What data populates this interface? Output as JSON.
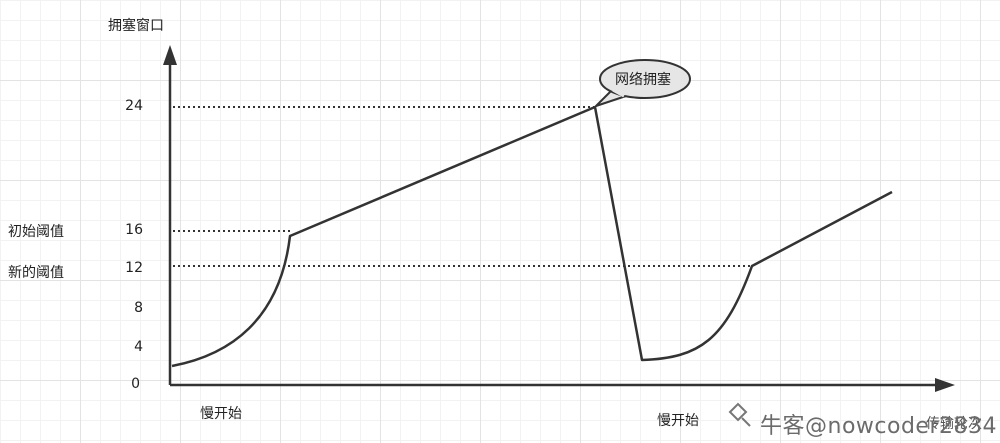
{
  "y_axis": {
    "label": "拥塞窗口"
  },
  "x_axis": {
    "label": "传输轮次"
  },
  "ticks": [
    "24",
    "16",
    "12",
    "8",
    "4",
    "0"
  ],
  "thresholds": {
    "initial": "初始阈值",
    "new": "新的阈值"
  },
  "event": {
    "label": "网络拥塞"
  },
  "phases": {
    "slow_start_1": "慢开始",
    "slow_start_2": "慢开始"
  },
  "watermark": "牛客@nowcoder2834",
  "colors": {
    "line": "#333333",
    "bubble_fill": "#e6e6e6",
    "axis": "#333333"
  }
}
